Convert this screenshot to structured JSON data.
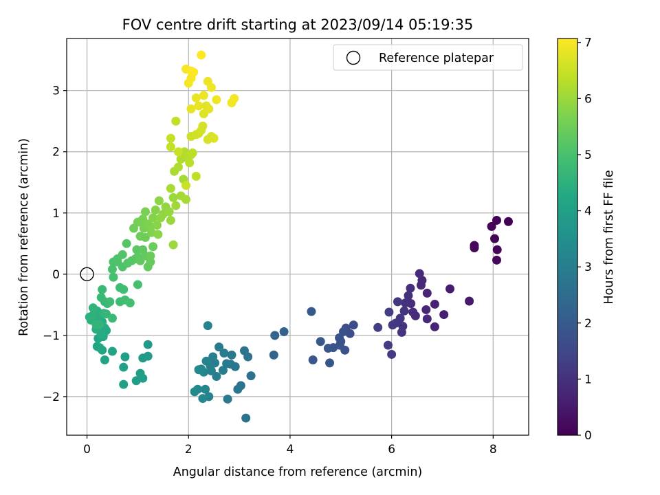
{
  "chart_data": {
    "type": "scatter",
    "title": "FOV centre drift starting at 2023/09/14 05:19:35",
    "xlabel": "Angular distance from reference (arcmin)",
    "ylabel": "Rotation from reference (arcmin)",
    "xlim": [
      -0.4,
      8.7
    ],
    "ylim": [
      -2.63,
      3.85
    ],
    "x_ticks": [
      0,
      2,
      4,
      6,
      8
    ],
    "y_ticks": [
      -2,
      -1,
      0,
      1,
      2,
      3
    ],
    "grid": true,
    "legend": {
      "position": "top-right",
      "entries": [
        "Reference platepar"
      ]
    },
    "reference_point": {
      "x": 0,
      "y": 0
    },
    "colorbar": {
      "label": "Hours from first FF file",
      "range": [
        0,
        7.07
      ],
      "ticks": [
        0,
        1,
        2,
        3,
        4,
        5,
        6,
        7
      ],
      "colormap": "viridis"
    },
    "points": [
      [
        8.3,
        0.86,
        0.02
      ],
      [
        8.07,
        0.88,
        0.04
      ],
      [
        7.97,
        0.78,
        0.06
      ],
      [
        8.03,
        0.58,
        0.08
      ],
      [
        8.08,
        0.4,
        0.1
      ],
      [
        8.07,
        0.23,
        0.12
      ],
      [
        7.63,
        0.47,
        0.15
      ],
      [
        7.63,
        0.43,
        0.17
      ],
      [
        7.53,
        -0.44,
        0.5
      ],
      [
        7.15,
        -0.24,
        0.55
      ],
      [
        7.03,
        -0.66,
        0.6
      ],
      [
        6.85,
        -0.49,
        0.65
      ],
      [
        6.85,
        -0.86,
        0.7
      ],
      [
        6.7,
        -0.31,
        0.72
      ],
      [
        6.68,
        -0.58,
        0.75
      ],
      [
        6.7,
        -0.73,
        0.78
      ],
      [
        6.6,
        -0.1,
        0.8
      ],
      [
        6.58,
        -0.18,
        0.82
      ],
      [
        6.55,
        0.01,
        0.85
      ],
      [
        6.47,
        -0.68,
        0.88
      ],
      [
        6.42,
        -0.62,
        0.9
      ],
      [
        6.38,
        -0.48,
        0.92
      ],
      [
        6.37,
        -0.23,
        0.95
      ],
      [
        6.33,
        -0.35,
        0.97
      ],
      [
        6.27,
        -0.47,
        1.0
      ],
      [
        6.22,
        -0.85,
        1.02
      ],
      [
        6.2,
        -0.95,
        1.05
      ],
      [
        6.25,
        -0.6,
        1.07
      ],
      [
        6.17,
        -0.72,
        1.1
      ],
      [
        6.12,
        -0.45,
        1.12
      ],
      [
        6.08,
        -0.8,
        1.15
      ],
      [
        6.02,
        -0.83,
        1.18
      ],
      [
        6.0,
        -1.31,
        1.2
      ],
      [
        5.93,
        -1.16,
        1.23
      ],
      [
        5.95,
        -0.62,
        1.25
      ],
      [
        5.73,
        -0.87,
        1.3
      ],
      [
        5.25,
        -0.83,
        1.6
      ],
      [
        5.18,
        -0.97,
        1.65
      ],
      [
        5.1,
        -0.88,
        1.7
      ],
      [
        5.08,
        -1.24,
        1.72
      ],
      [
        5.05,
        -0.94,
        1.75
      ],
      [
        5.0,
        -1.1,
        1.78
      ],
      [
        4.97,
        -1.04,
        1.8
      ],
      [
        4.98,
        -1.16,
        1.82
      ],
      [
        4.85,
        -1.2,
        1.85
      ],
      [
        4.78,
        -1.45,
        1.88
      ],
      [
        4.75,
        -1.21,
        1.9
      ],
      [
        4.6,
        -1.1,
        1.93
      ],
      [
        4.45,
        -1.4,
        1.95
      ],
      [
        4.42,
        -0.61,
        1.98
      ],
      [
        3.88,
        -0.94,
        2.2
      ],
      [
        3.7,
        -1.0,
        2.25
      ],
      [
        3.68,
        -1.32,
        2.3
      ],
      [
        3.23,
        -1.66,
        2.6
      ],
      [
        3.17,
        -1.35,
        2.65
      ],
      [
        3.1,
        -1.25,
        2.68
      ],
      [
        3.13,
        -2.35,
        2.7
      ],
      [
        3.03,
        -1.82,
        2.72
      ],
      [
        2.97,
        -1.88,
        2.75
      ],
      [
        2.92,
        -1.51,
        2.78
      ],
      [
        2.85,
        -1.32,
        2.8
      ],
      [
        2.83,
        -1.47,
        2.82
      ],
      [
        2.77,
        -2.04,
        2.85
      ],
      [
        2.75,
        -1.46,
        2.88
      ],
      [
        2.7,
        -1.29,
        2.9
      ],
      [
        2.68,
        -1.57,
        2.92
      ],
      [
        2.6,
        -1.19,
        2.95
      ],
      [
        2.55,
        -1.67,
        2.97
      ],
      [
        2.52,
        -1.45,
        3.0
      ],
      [
        2.48,
        -1.35,
        3.02
      ],
      [
        2.45,
        -1.58,
        3.05
      ],
      [
        2.43,
        -1.5,
        3.07
      ],
      [
        2.4,
        -2.0,
        3.1
      ],
      [
        2.38,
        -0.84,
        3.12
      ],
      [
        2.35,
        -1.42,
        3.15
      ],
      [
        2.33,
        -1.88,
        3.18
      ],
      [
        2.3,
        -1.6,
        3.2
      ],
      [
        2.28,
        -2.03,
        3.22
      ],
      [
        2.25,
        -1.55,
        3.25
      ],
      [
        2.2,
        -1.56,
        3.28
      ],
      [
        2.18,
        -1.88,
        3.3
      ],
      [
        2.12,
        -1.92,
        3.32
      ],
      [
        1.2,
        -1.15,
        3.8
      ],
      [
        1.2,
        -1.34,
        3.82
      ],
      [
        1.1,
        -1.37,
        3.85
      ],
      [
        1.1,
        -1.7,
        3.88
      ],
      [
        1.05,
        -1.62,
        3.9
      ],
      [
        0.97,
        -1.74,
        3.93
      ],
      [
        0.75,
        -1.35,
        3.95
      ],
      [
        0.72,
        -1.8,
        3.98
      ],
      [
        0.72,
        -1.52,
        4.0
      ],
      [
        0.5,
        -1.26,
        4.05
      ],
      [
        0.35,
        -1.4,
        4.1
      ],
      [
        0.3,
        -1.24,
        4.15
      ],
      [
        0.25,
        -1.2,
        4.18
      ],
      [
        0.2,
        -1.18,
        4.2
      ],
      [
        0.22,
        -1.05,
        4.22
      ],
      [
        0.32,
        -1.02,
        4.25
      ],
      [
        0.38,
        -0.92,
        4.28
      ],
      [
        0.35,
        -0.88,
        4.3
      ],
      [
        0.28,
        -0.98,
        4.32
      ],
      [
        0.3,
        -0.78,
        4.35
      ],
      [
        0.18,
        -0.9,
        4.38
      ],
      [
        0.25,
        -0.68,
        4.4
      ],
      [
        0.15,
        -0.72,
        4.42
      ],
      [
        0.2,
        -0.6,
        4.45
      ],
      [
        0.1,
        -0.68,
        4.48
      ],
      [
        0.05,
        -0.7,
        4.5
      ],
      [
        0.08,
        -0.75,
        4.52
      ],
      [
        0.12,
        -0.55,
        4.55
      ],
      [
        0.18,
        -0.82,
        4.58
      ],
      [
        0.25,
        -0.82,
        4.6
      ],
      [
        0.33,
        -0.64,
        4.62
      ],
      [
        0.38,
        -0.65,
        4.65
      ],
      [
        0.4,
        -0.48,
        4.68
      ],
      [
        0.35,
        -0.45,
        4.7
      ],
      [
        0.28,
        -0.38,
        4.72
      ],
      [
        0.3,
        -0.25,
        4.75
      ],
      [
        0.5,
        -0.72,
        4.78
      ],
      [
        0.45,
        -0.45,
        4.8
      ],
      [
        0.65,
        -0.45,
        4.82
      ],
      [
        0.65,
        -0.22,
        4.85
      ],
      [
        0.72,
        -0.25,
        4.88
      ],
      [
        0.75,
        -0.42,
        4.9
      ],
      [
        0.85,
        -0.47,
        4.92
      ],
      [
        0.52,
        -0.05,
        4.95
      ],
      [
        1.0,
        -0.17,
        4.98
      ],
      [
        0.5,
        0.08,
        5.0
      ],
      [
        0.52,
        0.2,
        5.02
      ],
      [
        0.6,
        0.2,
        5.05
      ],
      [
        0.6,
        0.25,
        5.08
      ],
      [
        0.7,
        0.12,
        5.1
      ],
      [
        0.7,
        0.32,
        5.12
      ],
      [
        0.8,
        0.18,
        5.15
      ],
      [
        0.88,
        0.22,
        5.18
      ],
      [
        0.78,
        0.5,
        5.2
      ],
      [
        0.95,
        0.25,
        5.22
      ],
      [
        0.98,
        0.4,
        5.25
      ],
      [
        1.0,
        0.28,
        5.28
      ],
      [
        1.05,
        0.22,
        5.3
      ],
      [
        1.1,
        0.4,
        5.32
      ],
      [
        1.15,
        0.3,
        5.35
      ],
      [
        1.2,
        0.12,
        5.38
      ],
      [
        1.25,
        0.2,
        5.4
      ],
      [
        1.25,
        0.3,
        5.42
      ],
      [
        1.3,
        0.45,
        5.45
      ],
      [
        1.15,
        0.6,
        5.48
      ],
      [
        1.05,
        0.62,
        5.5
      ],
      [
        0.92,
        0.75,
        5.52
      ],
      [
        1.0,
        0.85,
        5.55
      ],
      [
        1.05,
        0.85,
        5.58
      ],
      [
        1.1,
        0.9,
        5.6
      ],
      [
        1.12,
        0.75,
        5.62
      ],
      [
        1.15,
        1.02,
        5.65
      ],
      [
        1.2,
        0.82,
        5.68
      ],
      [
        1.25,
        0.78,
        5.7
      ],
      [
        1.27,
        0.68,
        5.72
      ],
      [
        1.3,
        0.92,
        5.75
      ],
      [
        1.35,
        1.05,
        5.78
      ],
      [
        1.38,
        0.8,
        5.8
      ],
      [
        1.4,
        0.65,
        5.82
      ],
      [
        1.42,
        1.2,
        5.85
      ],
      [
        1.45,
        0.92,
        5.87
      ],
      [
        1.5,
        0.98,
        5.9
      ],
      [
        1.55,
        1.1,
        5.92
      ],
      [
        1.62,
        1.02,
        5.95
      ],
      [
        1.65,
        0.88,
        5.97
      ],
      [
        1.7,
        1.25,
        6.0
      ],
      [
        1.7,
        0.48,
        6.02
      ],
      [
        1.75,
        1.12,
        6.05
      ],
      [
        1.85,
        1.28,
        6.08
      ],
      [
        1.9,
        1.55,
        6.1
      ],
      [
        1.95,
        1.22,
        6.12
      ],
      [
        1.65,
        1.4,
        6.15
      ],
      [
        1.72,
        1.68,
        6.17
      ],
      [
        1.8,
        1.75,
        6.2
      ],
      [
        1.85,
        1.88,
        6.22
      ],
      [
        1.92,
        2.0,
        6.25
      ],
      [
        1.98,
        1.9,
        6.27
      ],
      [
        2.02,
        1.82,
        6.3
      ],
      [
        2.05,
        1.95,
        6.32
      ],
      [
        2.08,
        1.98,
        6.35
      ],
      [
        2.15,
        1.6,
        6.37
      ],
      [
        1.75,
        2.5,
        6.4
      ],
      [
        1.65,
        2.08,
        6.42
      ],
      [
        1.65,
        2.22,
        6.45
      ],
      [
        1.8,
        2.0,
        6.48
      ],
      [
        1.95,
        1.45,
        6.5
      ],
      [
        2.05,
        2.25,
        6.52
      ],
      [
        2.15,
        2.28,
        6.55
      ],
      [
        2.2,
        2.3,
        6.57
      ],
      [
        2.25,
        2.35,
        6.6
      ],
      [
        2.28,
        2.42,
        6.62
      ],
      [
        2.38,
        2.2,
        6.65
      ],
      [
        2.45,
        2.25,
        6.67
      ],
      [
        2.5,
        2.22,
        6.7
      ],
      [
        2.3,
        2.62,
        6.72
      ],
      [
        2.35,
        2.75,
        6.75
      ],
      [
        2.4,
        2.7,
        6.77
      ],
      [
        2.05,
        2.7,
        6.8
      ],
      [
        2.15,
        2.88,
        6.82
      ],
      [
        2.2,
        2.75,
        6.84
      ],
      [
        2.3,
        2.92,
        6.86
      ],
      [
        2.38,
        3.15,
        6.88
      ],
      [
        2.45,
        3.05,
        6.9
      ],
      [
        2.55,
        2.85,
        6.92
      ],
      [
        2.85,
        2.8,
        6.94
      ],
      [
        2.9,
        2.87,
        6.96
      ],
      [
        2.0,
        3.12,
        6.98
      ],
      [
        2.05,
        3.2,
        7.0
      ],
      [
        1.95,
        3.35,
        7.02
      ],
      [
        2.05,
        3.32,
        7.04
      ],
      [
        2.1,
        3.3,
        7.05
      ],
      [
        2.25,
        3.58,
        7.07
      ]
    ]
  }
}
